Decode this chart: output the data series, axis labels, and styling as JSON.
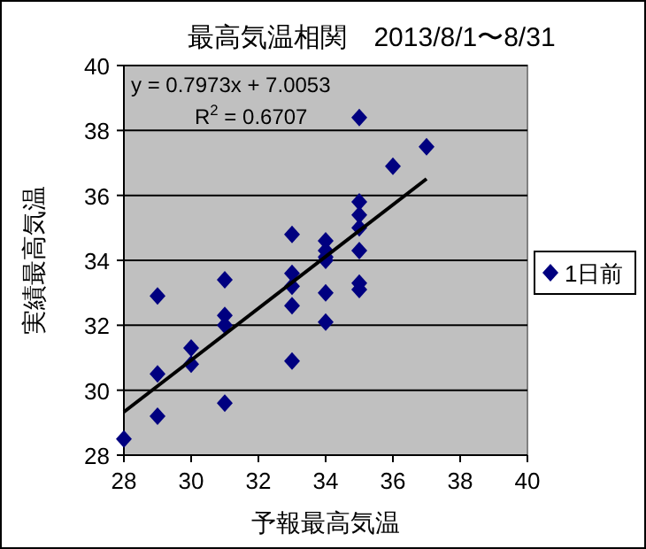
{
  "chart_data": {
    "type": "scatter",
    "title": "最高気温相関　2013/8/1〜8/31",
    "xlabel": "予報最高気温",
    "ylabel": "実績最高気温",
    "xlim": [
      28,
      40
    ],
    "ylim": [
      28,
      40
    ],
    "xticks": [
      28,
      30,
      32,
      34,
      36,
      38,
      40
    ],
    "yticks": [
      28,
      30,
      32,
      34,
      36,
      38,
      40
    ],
    "grid": "y",
    "legend": "right",
    "marker": "diamond",
    "series": [
      {
        "name": "1日前",
        "color": "#000080",
        "x": [
          28,
          29,
          29,
          29,
          30,
          30,
          31,
          31,
          31,
          31,
          33,
          33,
          33,
          33,
          33,
          34,
          34,
          34,
          34,
          34,
          34,
          35,
          35,
          35,
          35,
          35,
          35,
          35,
          36,
          37
        ],
        "values": [
          28.5,
          29.2,
          30.5,
          32.9,
          31.3,
          30.8,
          29.6,
          32.0,
          32.3,
          33.4,
          30.9,
          32.6,
          33.2,
          33.6,
          34.8,
          32.1,
          33.0,
          34.0,
          34.1,
          34.3,
          34.6,
          33.1,
          33.3,
          34.3,
          35.0,
          35.4,
          35.8,
          38.4,
          36.9,
          37.5
        ]
      },
      {
        "type": "line",
        "marker": "none",
        "color": "#000000",
        "x": [
          28,
          37
        ],
        "values": [
          29.33,
          36.51
        ]
      }
    ],
    "annotations": [
      "y = 0.7973x + 7.0053",
      "R$^{2}$ = 0.6707"
    ]
  }
}
